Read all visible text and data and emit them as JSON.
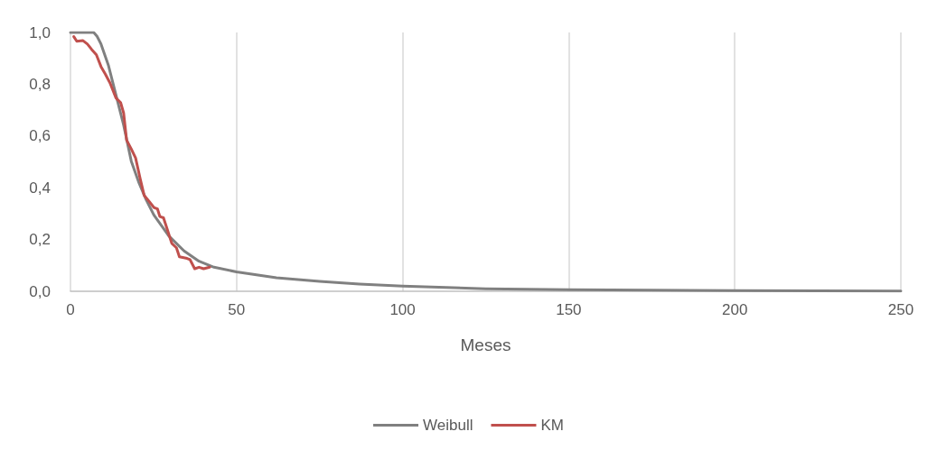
{
  "chart_data": {
    "type": "line",
    "xlabel": "Meses",
    "xlim": [
      0,
      250
    ],
    "xticks": [
      0,
      50,
      100,
      150,
      200,
      250
    ],
    "ylim": [
      0,
      1
    ],
    "yticks": [
      {
        "value": 0,
        "label": "0,0"
      },
      {
        "value": 0.2,
        "label": "0,2"
      },
      {
        "value": 0.4,
        "label": "0,4"
      },
      {
        "value": 0.6,
        "label": "0,6"
      },
      {
        "value": 0.8,
        "label": "0,8"
      },
      {
        "value": 1,
        "label": "1,0"
      }
    ],
    "grid": "x",
    "legend": "bottom",
    "marker": "none",
    "line_style": "solid",
    "series": [
      {
        "name": "Weibull",
        "color": "#808080",
        "x": [
          0,
          5,
          7,
          8,
          9.2,
          11.4,
          13.7,
          16,
          18.3,
          20.5,
          22.8,
          25.1,
          29.6,
          34.2,
          38.7,
          43.2,
          50,
          62,
          75,
          87,
          100,
          125,
          150,
          175,
          200,
          225,
          250
        ],
        "values": [
          1,
          1,
          1,
          0.985,
          0.955,
          0.874,
          0.758,
          0.642,
          0.503,
          0.423,
          0.353,
          0.295,
          0.214,
          0.156,
          0.116,
          0.093,
          0.075,
          0.052,
          0.038,
          0.028,
          0.02,
          0.01,
          0.006,
          0.004,
          0.003,
          0.002,
          0.001
        ]
      },
      {
        "name": "KM",
        "color": "#c0504d",
        "x": [
          1,
          1.9,
          3.7,
          5.1,
          6.4,
          7.8,
          9.2,
          10.5,
          11.9,
          13.7,
          15.1,
          16,
          16.9,
          18.3,
          19.6,
          21,
          22.2,
          23.7,
          25.1,
          26.2,
          26.9,
          28,
          29.2,
          30.5,
          31.9,
          32.8,
          35.1,
          36,
          37.4,
          38.7,
          40.1,
          41.9
        ],
        "values": [
          0.984,
          0.966,
          0.969,
          0.955,
          0.934,
          0.914,
          0.868,
          0.839,
          0.805,
          0.747,
          0.729,
          0.689,
          0.584,
          0.55,
          0.515,
          0.434,
          0.37,
          0.347,
          0.324,
          0.318,
          0.289,
          0.284,
          0.237,
          0.185,
          0.168,
          0.133,
          0.127,
          0.122,
          0.087,
          0.093,
          0.087,
          0.093
        ]
      }
    ]
  }
}
